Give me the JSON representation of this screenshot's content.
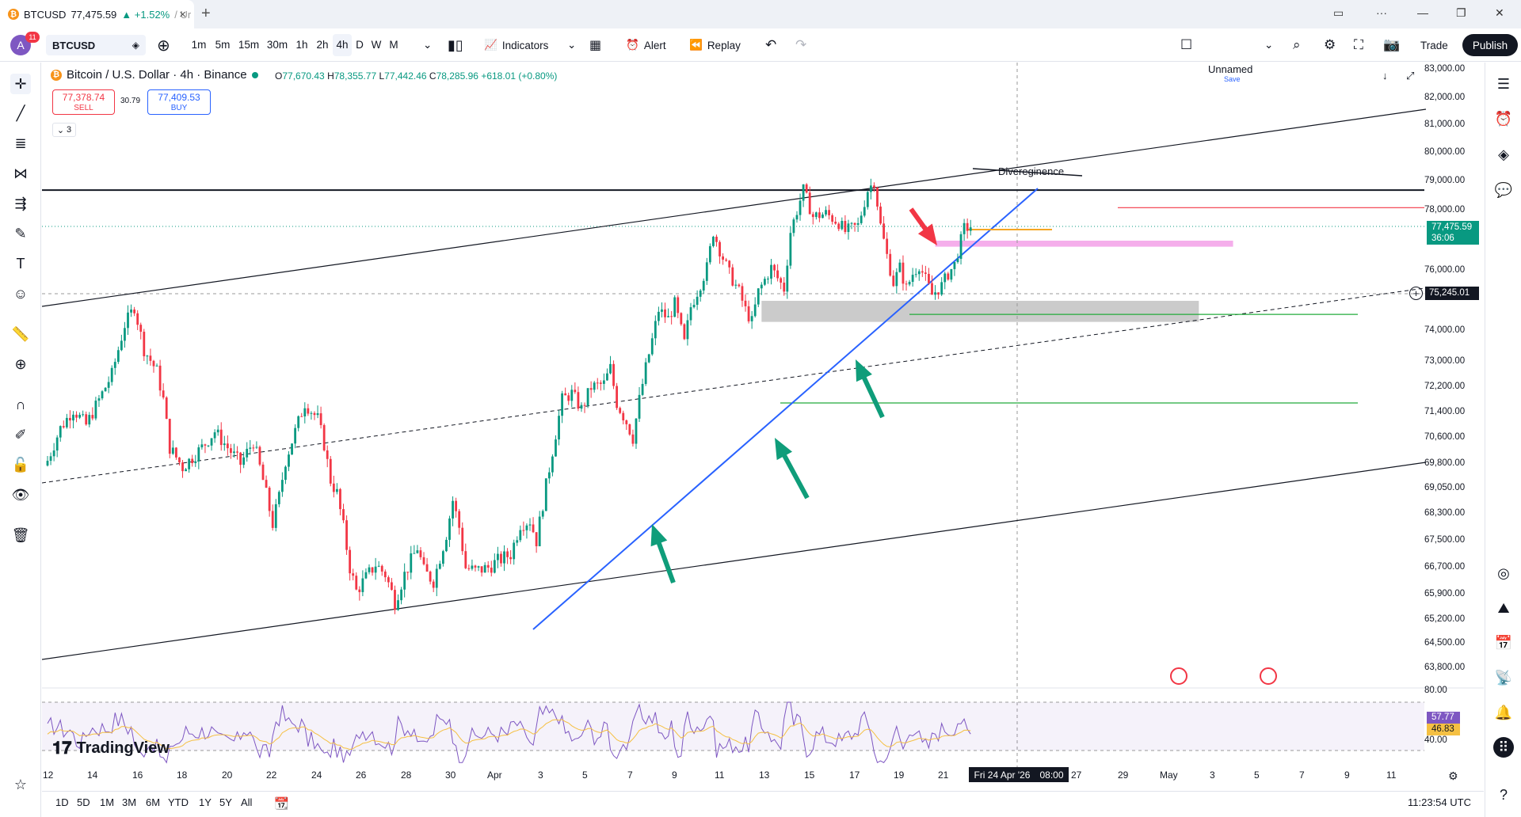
{
  "browser": {
    "tab_title": "BTCUSD",
    "tab_price": "77,475.59",
    "tab_change": "▲ +1.52%",
    "tab_suffix": "/ Ur"
  },
  "toolbar": {
    "avatar_letter": "A",
    "notifications": "11",
    "symbol": "BTCUSD",
    "intervals": [
      "1m",
      "5m",
      "15m",
      "30m",
      "1h",
      "2h",
      "4h",
      "D",
      "W",
      "M"
    ],
    "selected_interval": "4h",
    "indicators": "Indicators",
    "alert": "Alert",
    "replay": "Replay",
    "layout_name": "Unnamed",
    "layout_status": "Save",
    "trade": "Trade",
    "publish": "Publish"
  },
  "legend": {
    "title": "Bitcoin / U.S. Dollar · 4h · Binance",
    "o_label": "O",
    "o": "77,670.43",
    "h_label": "H",
    "h": "78,355.77",
    "l_label": "L",
    "l": "77,442.46",
    "c_label": "C",
    "c": "78,285.96",
    "change": "+618.01 (+0.80%)",
    "sell_price": "77,378.74",
    "sell_label": "SELL",
    "spread": "30.79",
    "buy_price": "77,409.53",
    "buy_label": "BUY",
    "collapse_count": "3"
  },
  "annotation": {
    "text": "Divereginence"
  },
  "price_axis": {
    "labels": [
      "83,000.00",
      "82,000.00",
      "81,000.00",
      "80,000.00",
      "79,000.00",
      "78,000.00",
      "76,000.00",
      "74,000.00",
      "73,000.00",
      "72,200.00",
      "71,400.00",
      "70,600.00",
      "69,800.00",
      "69,050.00",
      "68,300.00",
      "67,500.00",
      "66,700.00",
      "65,900.00",
      "65,200.00",
      "64,500.00",
      "63,800.00"
    ],
    "current_price": "77,475.59",
    "countdown": "36:06",
    "crosshair_price": "75,245.01"
  },
  "rsi": {
    "top": "80.00",
    "bottom": "40.00",
    "value": "57.77",
    "ma": "46.83"
  },
  "time_axis": {
    "labels": [
      "12",
      "14",
      "16",
      "18",
      "20",
      "22",
      "24",
      "26",
      "28",
      "30",
      "Apr",
      "3",
      "5",
      "7",
      "9",
      "11",
      "13",
      "15",
      "17",
      "19",
      "21",
      "27",
      "29",
      "May",
      "3",
      "5",
      "7",
      "9",
      "11"
    ],
    "crosshair_date": "Fri 24 Apr '26",
    "crosshair_time": "08:00"
  },
  "bottom": {
    "ranges": [
      "1D",
      "5D",
      "1M",
      "3M",
      "6M",
      "YTD",
      "1Y",
      "5Y",
      "All"
    ],
    "clock": "11:23:54 UTC"
  },
  "brand": {
    "logo_text": "TradingView"
  },
  "colors": {
    "up": "#089981",
    "down": "#f23645",
    "accent": "#2962ff",
    "arrow_green": "#0f9d7a",
    "arrow_red": "#f23645"
  },
  "chart_data": {
    "type": "candlestick",
    "symbol": "BTCUSD",
    "timeframe": "4h",
    "x_range": [
      "Mar 12",
      "May 11"
    ],
    "ylim": [
      63500,
      83200
    ],
    "grid": false,
    "path_close": [
      [
        0,
        69900
      ],
      [
        4,
        70900
      ],
      [
        8,
        71500
      ],
      [
        12,
        71000
      ],
      [
        16,
        71800
      ],
      [
        20,
        72600
      ],
      [
        24,
        74200
      ],
      [
        27,
        74800
      ],
      [
        30,
        73400
      ],
      [
        34,
        72700
      ],
      [
        36,
        71800
      ],
      [
        38,
        70300
      ],
      [
        42,
        69700
      ],
      [
        46,
        70100
      ],
      [
        48,
        70300
      ],
      [
        52,
        70800
      ],
      [
        56,
        70300
      ],
      [
        60,
        69800
      ],
      [
        64,
        70500
      ],
      [
        67,
        69300
      ],
      [
        70,
        68000
      ],
      [
        72,
        68800
      ],
      [
        74,
        69900
      ],
      [
        77,
        70800
      ],
      [
        80,
        71700
      ],
      [
        84,
        71200
      ],
      [
        86,
        70400
      ],
      [
        88,
        69300
      ],
      [
        90,
        68900
      ],
      [
        92,
        67900
      ],
      [
        94,
        66700
      ],
      [
        96,
        66000
      ],
      [
        99,
        66400
      ],
      [
        102,
        66800
      ],
      [
        105,
        66500
      ],
      [
        108,
        65700
      ],
      [
        111,
        66500
      ],
      [
        115,
        67300
      ],
      [
        117,
        66600
      ],
      [
        120,
        66300
      ],
      [
        124,
        67700
      ],
      [
        126,
        68700
      ],
      [
        128,
        67900
      ],
      [
        130,
        66700
      ],
      [
        133,
        66600
      ],
      [
        137,
        66700
      ],
      [
        140,
        66900
      ],
      [
        144,
        67100
      ],
      [
        147,
        68000
      ],
      [
        150,
        68100
      ],
      [
        152,
        67500
      ],
      [
        154,
        68600
      ],
      [
        157,
        70200
      ],
      [
        160,
        71800
      ],
      [
        163,
        72000
      ],
      [
        166,
        71500
      ],
      [
        169,
        72200
      ],
      [
        173,
        72300
      ],
      [
        175,
        72800
      ],
      [
        177,
        71700
      ],
      [
        180,
        71100
      ],
      [
        182,
        70600
      ],
      [
        184,
        71800
      ],
      [
        186,
        72800
      ],
      [
        188,
        73700
      ],
      [
        190,
        74700
      ],
      [
        193,
        74400
      ],
      [
        195,
        74900
      ],
      [
        198,
        73600
      ],
      [
        200,
        74800
      ],
      [
        202,
        75300
      ],
      [
        205,
        76100
      ],
      [
        207,
        77300
      ],
      [
        209,
        76700
      ],
      [
        212,
        75900
      ],
      [
        215,
        75300
      ],
      [
        217,
        74700
      ],
      [
        219,
        74300
      ],
      [
        221,
        75300
      ],
      [
        225,
        76100
      ],
      [
        229,
        75400
      ],
      [
        231,
        77300
      ],
      [
        233,
        78000
      ],
      [
        235,
        78700
      ],
      [
        238,
        77800
      ],
      [
        242,
        77900
      ],
      [
        246,
        77600
      ],
      [
        248,
        77300
      ],
      [
        252,
        77500
      ],
      [
        255,
        78700
      ],
      [
        257,
        79000
      ],
      [
        259,
        77500
      ],
      [
        261,
        76500
      ],
      [
        263,
        75600
      ],
      [
        265,
        76100
      ],
      [
        267,
        75400
      ],
      [
        269,
        75900
      ],
      [
        271,
        76200
      ],
      [
        275,
        75200
      ],
      [
        278,
        75500
      ],
      [
        280,
        75900
      ],
      [
        282,
        76200
      ],
      [
        285,
        77400
      ],
      [
        287,
        77475
      ]
    ],
    "support_lines": [
      74550,
      71700
    ],
    "resistance_line": 78100,
    "horizontal_level": 78700,
    "highlight_zones": [
      {
        "from": 74300,
        "to": 75000,
        "color": "gray"
      },
      {
        "from": 76800,
        "to": 77000,
        "color": "pink"
      }
    ],
    "indicator": {
      "name": "RSI",
      "levels": [
        80,
        40
      ],
      "value": 57.77,
      "ma": 46.83
    }
  }
}
